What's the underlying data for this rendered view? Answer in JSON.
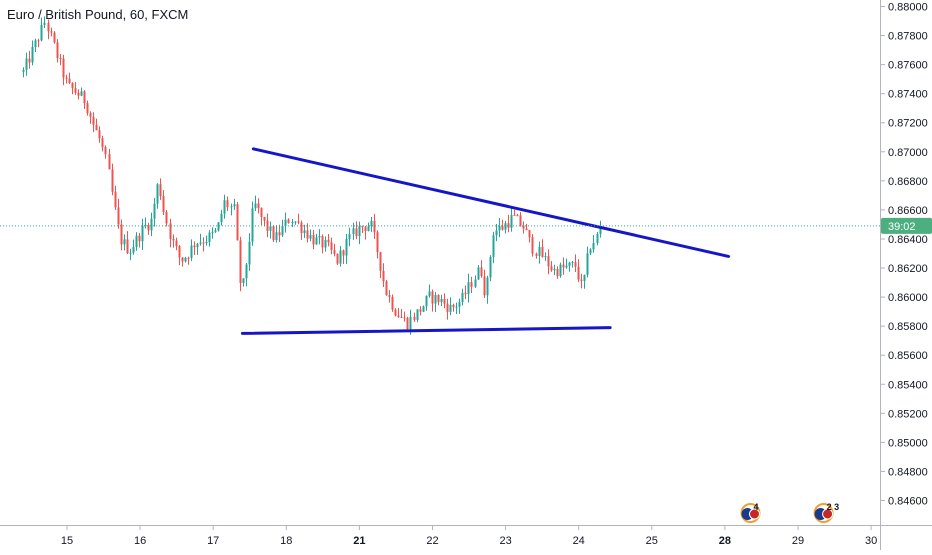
{
  "header": {
    "symbol_title": "Euro / British Pound, 60, FXCM"
  },
  "colors": {
    "bull": "#26a69a",
    "bear": "#ef5350",
    "trendline": "#1616c9",
    "price_line": "#26a69a",
    "price_tag_bg": "#4caf80",
    "axis_border": "#b2b5be"
  },
  "price_tag": {
    "label": "39:02",
    "price": 0.8649
  },
  "chart_data": {
    "type": "candlestick",
    "title": "Euro / British Pound, 60, FXCM",
    "ylim": [
      0.8448,
      0.8816
    ],
    "xlim": [
      14.4,
      30.15
    ],
    "y_ticks": [
      0.88,
      0.878,
      0.876,
      0.874,
      0.872,
      0.87,
      0.868,
      0.866,
      0.864,
      0.862,
      0.86,
      0.858,
      0.856,
      0.854,
      0.852,
      0.85,
      0.848,
      0.846
    ],
    "y_tick_labels": [
      "0.88000",
      "0.87800",
      "0.87600",
      "0.87400",
      "0.87200",
      "0.87000",
      "0.86800",
      "0.86600",
      "0.86400",
      "0.86200",
      "0.86000",
      "0.85800",
      "0.85600",
      "0.85400",
      "0.85200",
      "0.85000",
      "0.84800",
      "0.84600"
    ],
    "x_ticks": [
      15,
      16,
      17,
      18,
      21,
      22,
      23,
      24,
      25,
      28,
      29,
      30
    ],
    "x_tick_labels": [
      "15",
      "16",
      "17",
      "18",
      "21",
      "22",
      "23",
      "24",
      "25",
      "28",
      "29",
      "30"
    ],
    "x_tick_bold": [
      "21",
      "28"
    ],
    "x_tick_positions": [
      15,
      16,
      17,
      18,
      19,
      20,
      21,
      22,
      23,
      24,
      25,
      26
    ],
    "close_price": 0.8649,
    "trendlines": [
      {
        "name": "upper",
        "start": [
          17.55,
          0.8702
        ],
        "end": [
          24.05,
          0.8628
        ]
      },
      {
        "name": "lower",
        "start": [
          17.4,
          0.8575
        ],
        "end": [
          22.43,
          0.8579
        ]
      }
    ],
    "anchor_closes": [
      [
        14.4,
        0.8755
      ],
      [
        14.55,
        0.8772
      ],
      [
        14.7,
        0.879
      ],
      [
        14.8,
        0.8775
      ],
      [
        14.9,
        0.876
      ],
      [
        15.0,
        0.8745
      ],
      [
        15.1,
        0.8742
      ],
      [
        15.25,
        0.8735
      ],
      [
        15.35,
        0.872
      ],
      [
        15.45,
        0.8708
      ],
      [
        15.55,
        0.869
      ],
      [
        15.63,
        0.8665
      ],
      [
        15.72,
        0.864
      ],
      [
        15.85,
        0.8632
      ],
      [
        15.95,
        0.864
      ],
      [
        16.05,
        0.8648
      ],
      [
        16.15,
        0.8652
      ],
      [
        16.25,
        0.868
      ],
      [
        16.32,
        0.866
      ],
      [
        16.42,
        0.864
      ],
      [
        16.55,
        0.8625
      ],
      [
        16.65,
        0.863
      ],
      [
        16.75,
        0.8638
      ],
      [
        16.9,
        0.864
      ],
      [
        17.05,
        0.8645
      ],
      [
        17.15,
        0.8665
      ],
      [
        17.28,
        0.866
      ],
      [
        17.38,
        0.86
      ],
      [
        17.45,
        0.8625
      ],
      [
        17.55,
        0.8665
      ],
      [
        17.7,
        0.865
      ],
      [
        17.85,
        0.864
      ],
      [
        18.05,
        0.8655
      ],
      [
        18.2,
        0.8648
      ],
      [
        18.35,
        0.864
      ],
      [
        18.55,
        0.8635
      ],
      [
        18.7,
        0.8625
      ],
      [
        18.85,
        0.864
      ],
      [
        19.0,
        0.8648
      ],
      [
        19.15,
        0.865
      ],
      [
        19.25,
        0.863
      ],
      [
        19.35,
        0.8605
      ],
      [
        19.5,
        0.859
      ],
      [
        19.65,
        0.8582
      ],
      [
        19.8,
        0.859
      ],
      [
        19.95,
        0.86
      ],
      [
        20.1,
        0.8598
      ],
      [
        20.25,
        0.8592
      ],
      [
        20.4,
        0.8598
      ],
      [
        20.55,
        0.8612
      ],
      [
        20.65,
        0.862
      ],
      [
        20.72,
        0.86
      ],
      [
        20.82,
        0.8645
      ],
      [
        20.95,
        0.8648
      ],
      [
        21.1,
        0.8655
      ],
      [
        21.25,
        0.8648
      ],
      [
        21.35,
        0.8635
      ],
      [
        21.5,
        0.8628
      ],
      [
        21.65,
        0.8618
      ],
      [
        21.8,
        0.862
      ],
      [
        21.95,
        0.8622
      ],
      [
        22.05,
        0.8605
      ],
      [
        22.15,
        0.8635
      ],
      [
        22.25,
        0.8642
      ],
      [
        22.3,
        0.865
      ]
    ],
    "x_mapping_note_free": true
  }
}
